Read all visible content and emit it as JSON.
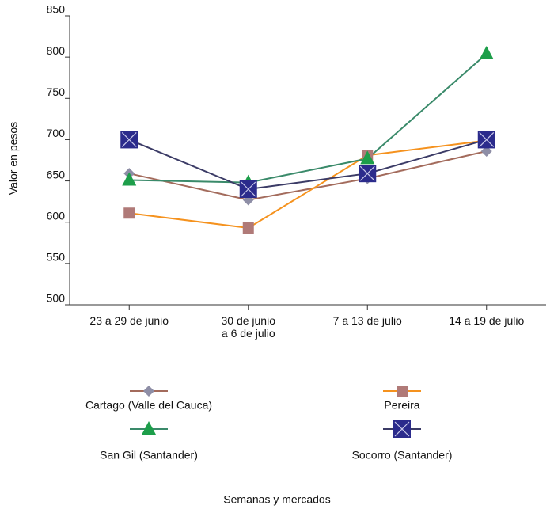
{
  "chart_data": {
    "type": "line",
    "x_label": "Semanas y mercados",
    "y_label": "Valor en pesos",
    "categories": [
      "23 a 29 de junio",
      "30 de junio\na 6 de julio",
      "7 a 13 de julio",
      "14 a 19 de julio"
    ],
    "ylim": [
      500,
      850
    ],
    "yticks": [
      500,
      550,
      600,
      650,
      700,
      750,
      800,
      850
    ],
    "grid": false,
    "series": [
      {
        "name": "Cartago (Valle del Cauca)",
        "color": "#a36b5c",
        "marker": "diamond",
        "marker_color": "#8e8ea6",
        "values": [
          659,
          627,
          653,
          686
        ]
      },
      {
        "name": "Pereira",
        "color": "#f5921e",
        "marker": "square",
        "marker_color": "#b07a78",
        "values": [
          611,
          593,
          681,
          699
        ]
      },
      {
        "name": "San Gil (Santander)",
        "color": "#3a8a6a",
        "marker": "triangle",
        "marker_color": "#1d9e4a",
        "values": [
          651,
          648,
          677,
          804
        ]
      },
      {
        "name": "Socorro (Santander)",
        "color": "#3b3b66",
        "marker": "xsquare",
        "marker_color": "#2b2b8c",
        "values": [
          700,
          640,
          659,
          700
        ]
      }
    ]
  }
}
